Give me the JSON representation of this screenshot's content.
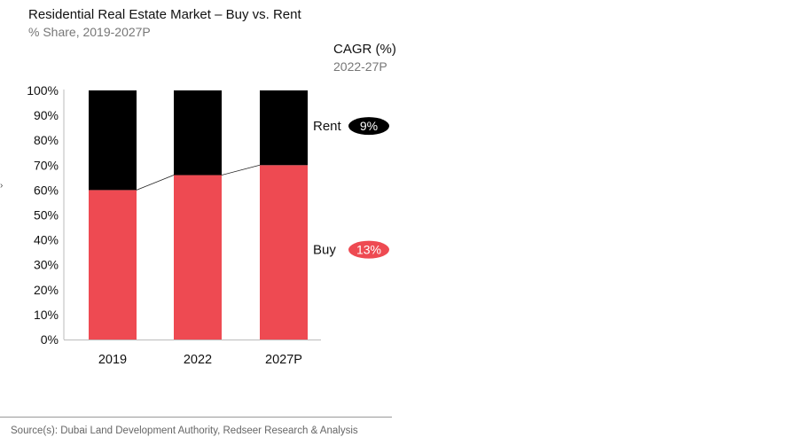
{
  "title": "Residential Real Estate Market – Buy vs. Rent",
  "subtitle": "% Share, 2019-2027P",
  "cagr": {
    "title": "CAGR (%)",
    "period": "2022-27P",
    "items": [
      {
        "series": "Rent",
        "value": "9%",
        "color": "#000000"
      },
      {
        "series": "Buy",
        "value": "13%",
        "color": "#ee4a52"
      }
    ]
  },
  "source": "Source(s): Dubai Land Development Authority, Redseer Research & Analysis",
  "chart_data": {
    "type": "bar",
    "stacked": true,
    "categories": [
      "2019",
      "2022",
      "2027P"
    ],
    "series": [
      {
        "name": "Buy",
        "values": [
          60,
          66,
          70
        ],
        "color": "#ee4a52"
      },
      {
        "name": "Rent",
        "values": [
          40,
          34,
          30
        ],
        "color": "#000000"
      }
    ],
    "ylim": [
      0,
      100
    ],
    "yticks": [
      "0%",
      "10%",
      "20%",
      "30%",
      "40%",
      "50%",
      "60%",
      "70%",
      "80%",
      "90%",
      "100%"
    ],
    "grid": false
  }
}
